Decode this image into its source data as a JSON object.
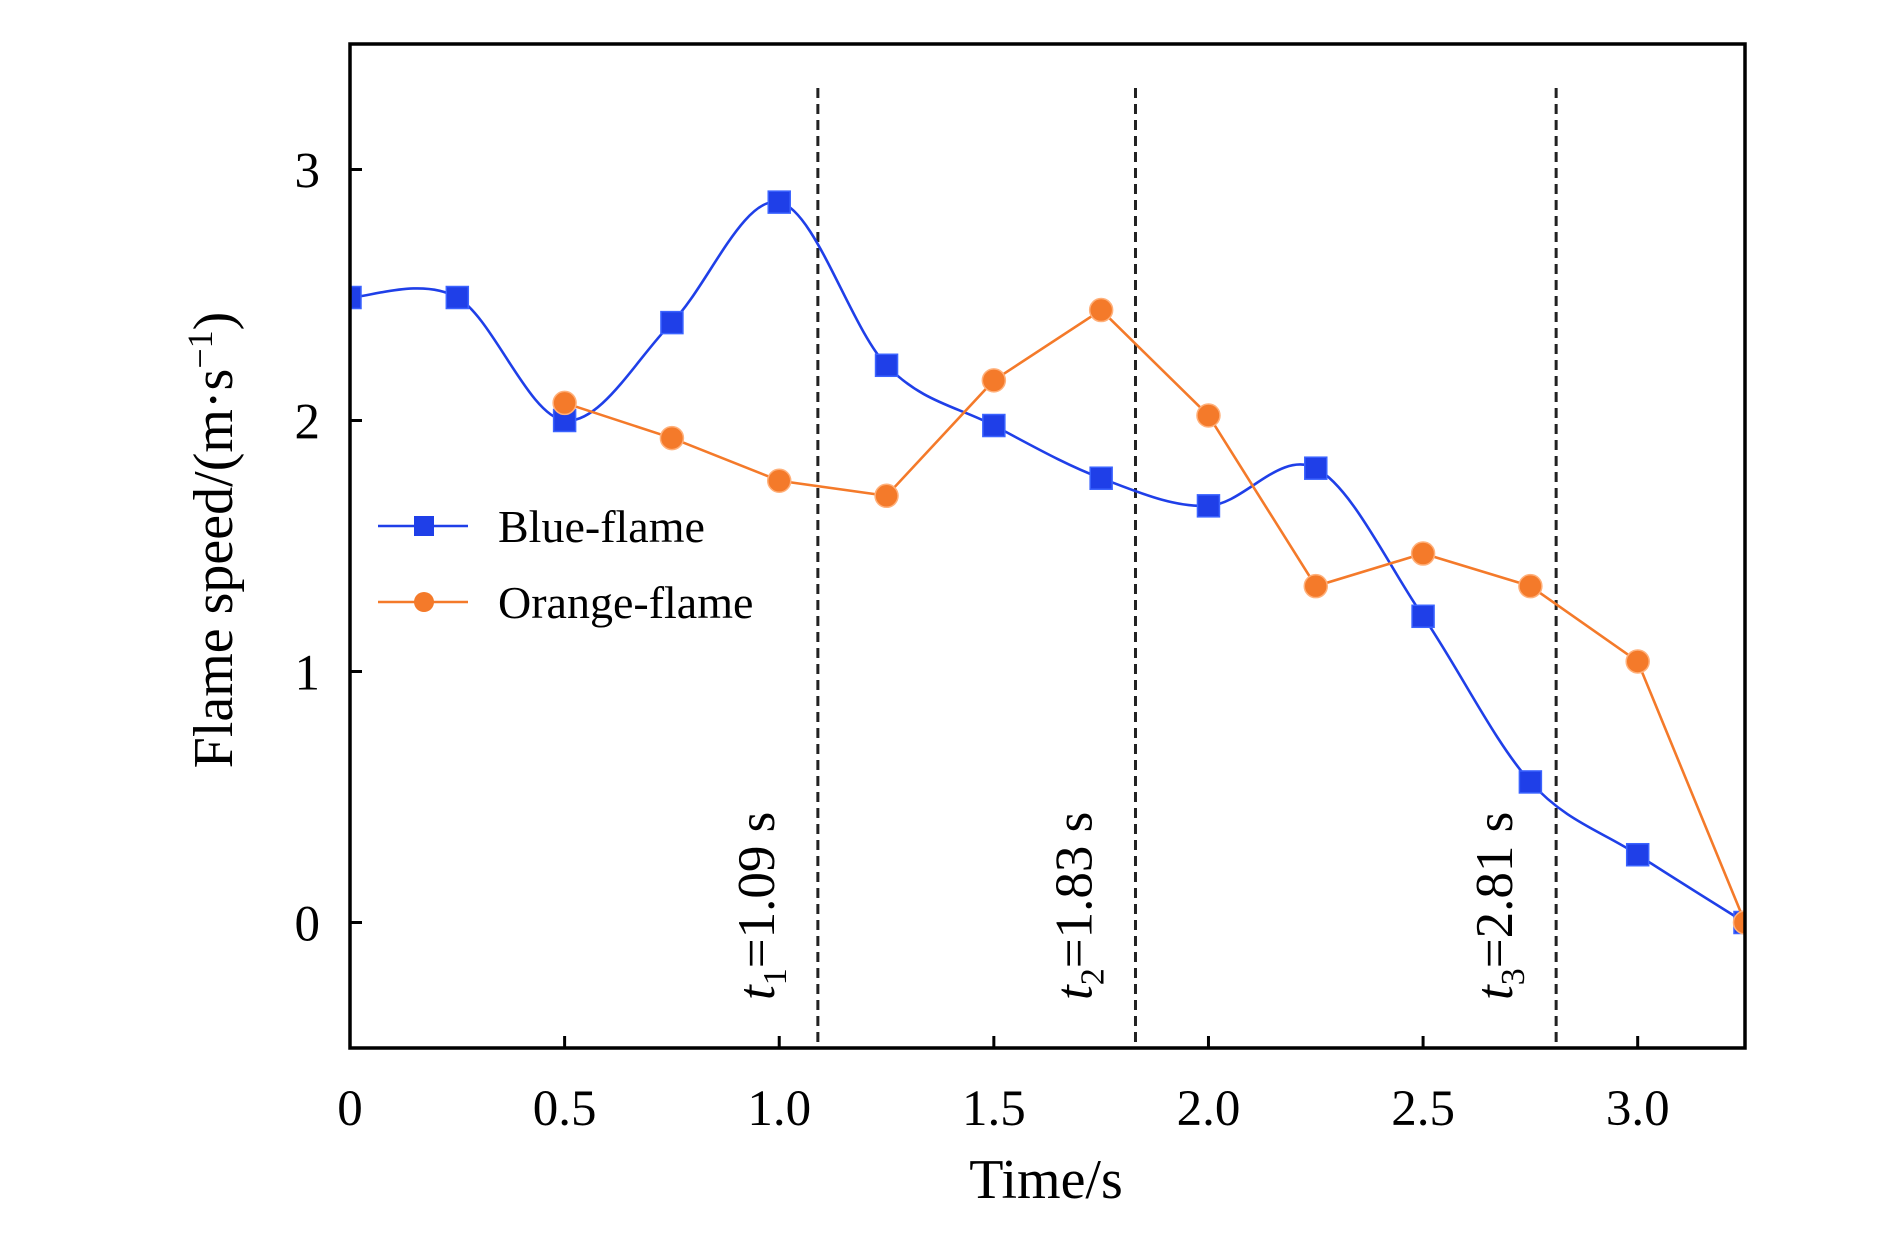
{
  "chart_data": {
    "type": "line",
    "xlabel": "Time/s",
    "ylabel": "Flame speed/(m·s",
    "ylabel_sup": "−1",
    "ylabel_close": ")",
    "xlim": [
      0,
      3.25
    ],
    "ylim": [
      -0.5,
      3.5
    ],
    "x_ticks": [
      {
        "value": 0,
        "label": "0"
      },
      {
        "value": 0.5,
        "label": "0.5"
      },
      {
        "value": 1.0,
        "label": "1.0"
      },
      {
        "value": 1.5,
        "label": "1.5"
      },
      {
        "value": 2.0,
        "label": "2.0"
      },
      {
        "value": 2.5,
        "label": "2.5"
      },
      {
        "value": 3.0,
        "label": "3.0"
      }
    ],
    "y_ticks": [
      {
        "value": 0,
        "label": "0"
      },
      {
        "value": 1,
        "label": "1"
      },
      {
        "value": 2,
        "label": "2"
      },
      {
        "value": 3,
        "label": "3"
      }
    ],
    "grid": false,
    "legend_position": "left",
    "series": [
      {
        "name": "Blue-flame",
        "color": "#1f3fe8",
        "marker": "square",
        "x": [
          0,
          0.25,
          0.5,
          0.75,
          1.0,
          1.25,
          1.5,
          1.75,
          2.0,
          2.25,
          2.5,
          2.75,
          3.0,
          3.25
        ],
        "y": [
          2.49,
          2.49,
          2.0,
          2.39,
          2.87,
          2.22,
          1.98,
          1.77,
          1.66,
          1.81,
          1.22,
          0.56,
          0.27,
          0.0
        ]
      },
      {
        "name": "Orange-flame",
        "color": "#f47a2a",
        "marker": "circle",
        "x": [
          0.5,
          0.75,
          1.0,
          1.25,
          1.5,
          1.75,
          2.0,
          2.25,
          2.5,
          2.75,
          3.0,
          3.25
        ],
        "y": [
          2.07,
          1.93,
          1.76,
          1.7,
          2.16,
          2.44,
          2.02,
          1.34,
          1.47,
          1.34,
          1.04,
          0.0
        ]
      }
    ],
    "vlines": [
      {
        "x": 1.09,
        "var": "t",
        "sub": "1",
        "text": "=1.09 s"
      },
      {
        "x": 1.83,
        "var": "t",
        "sub": "2",
        "text": "=1.83 s"
      },
      {
        "x": 2.81,
        "var": "t",
        "sub": "3",
        "text": "=2.81 s"
      }
    ]
  }
}
